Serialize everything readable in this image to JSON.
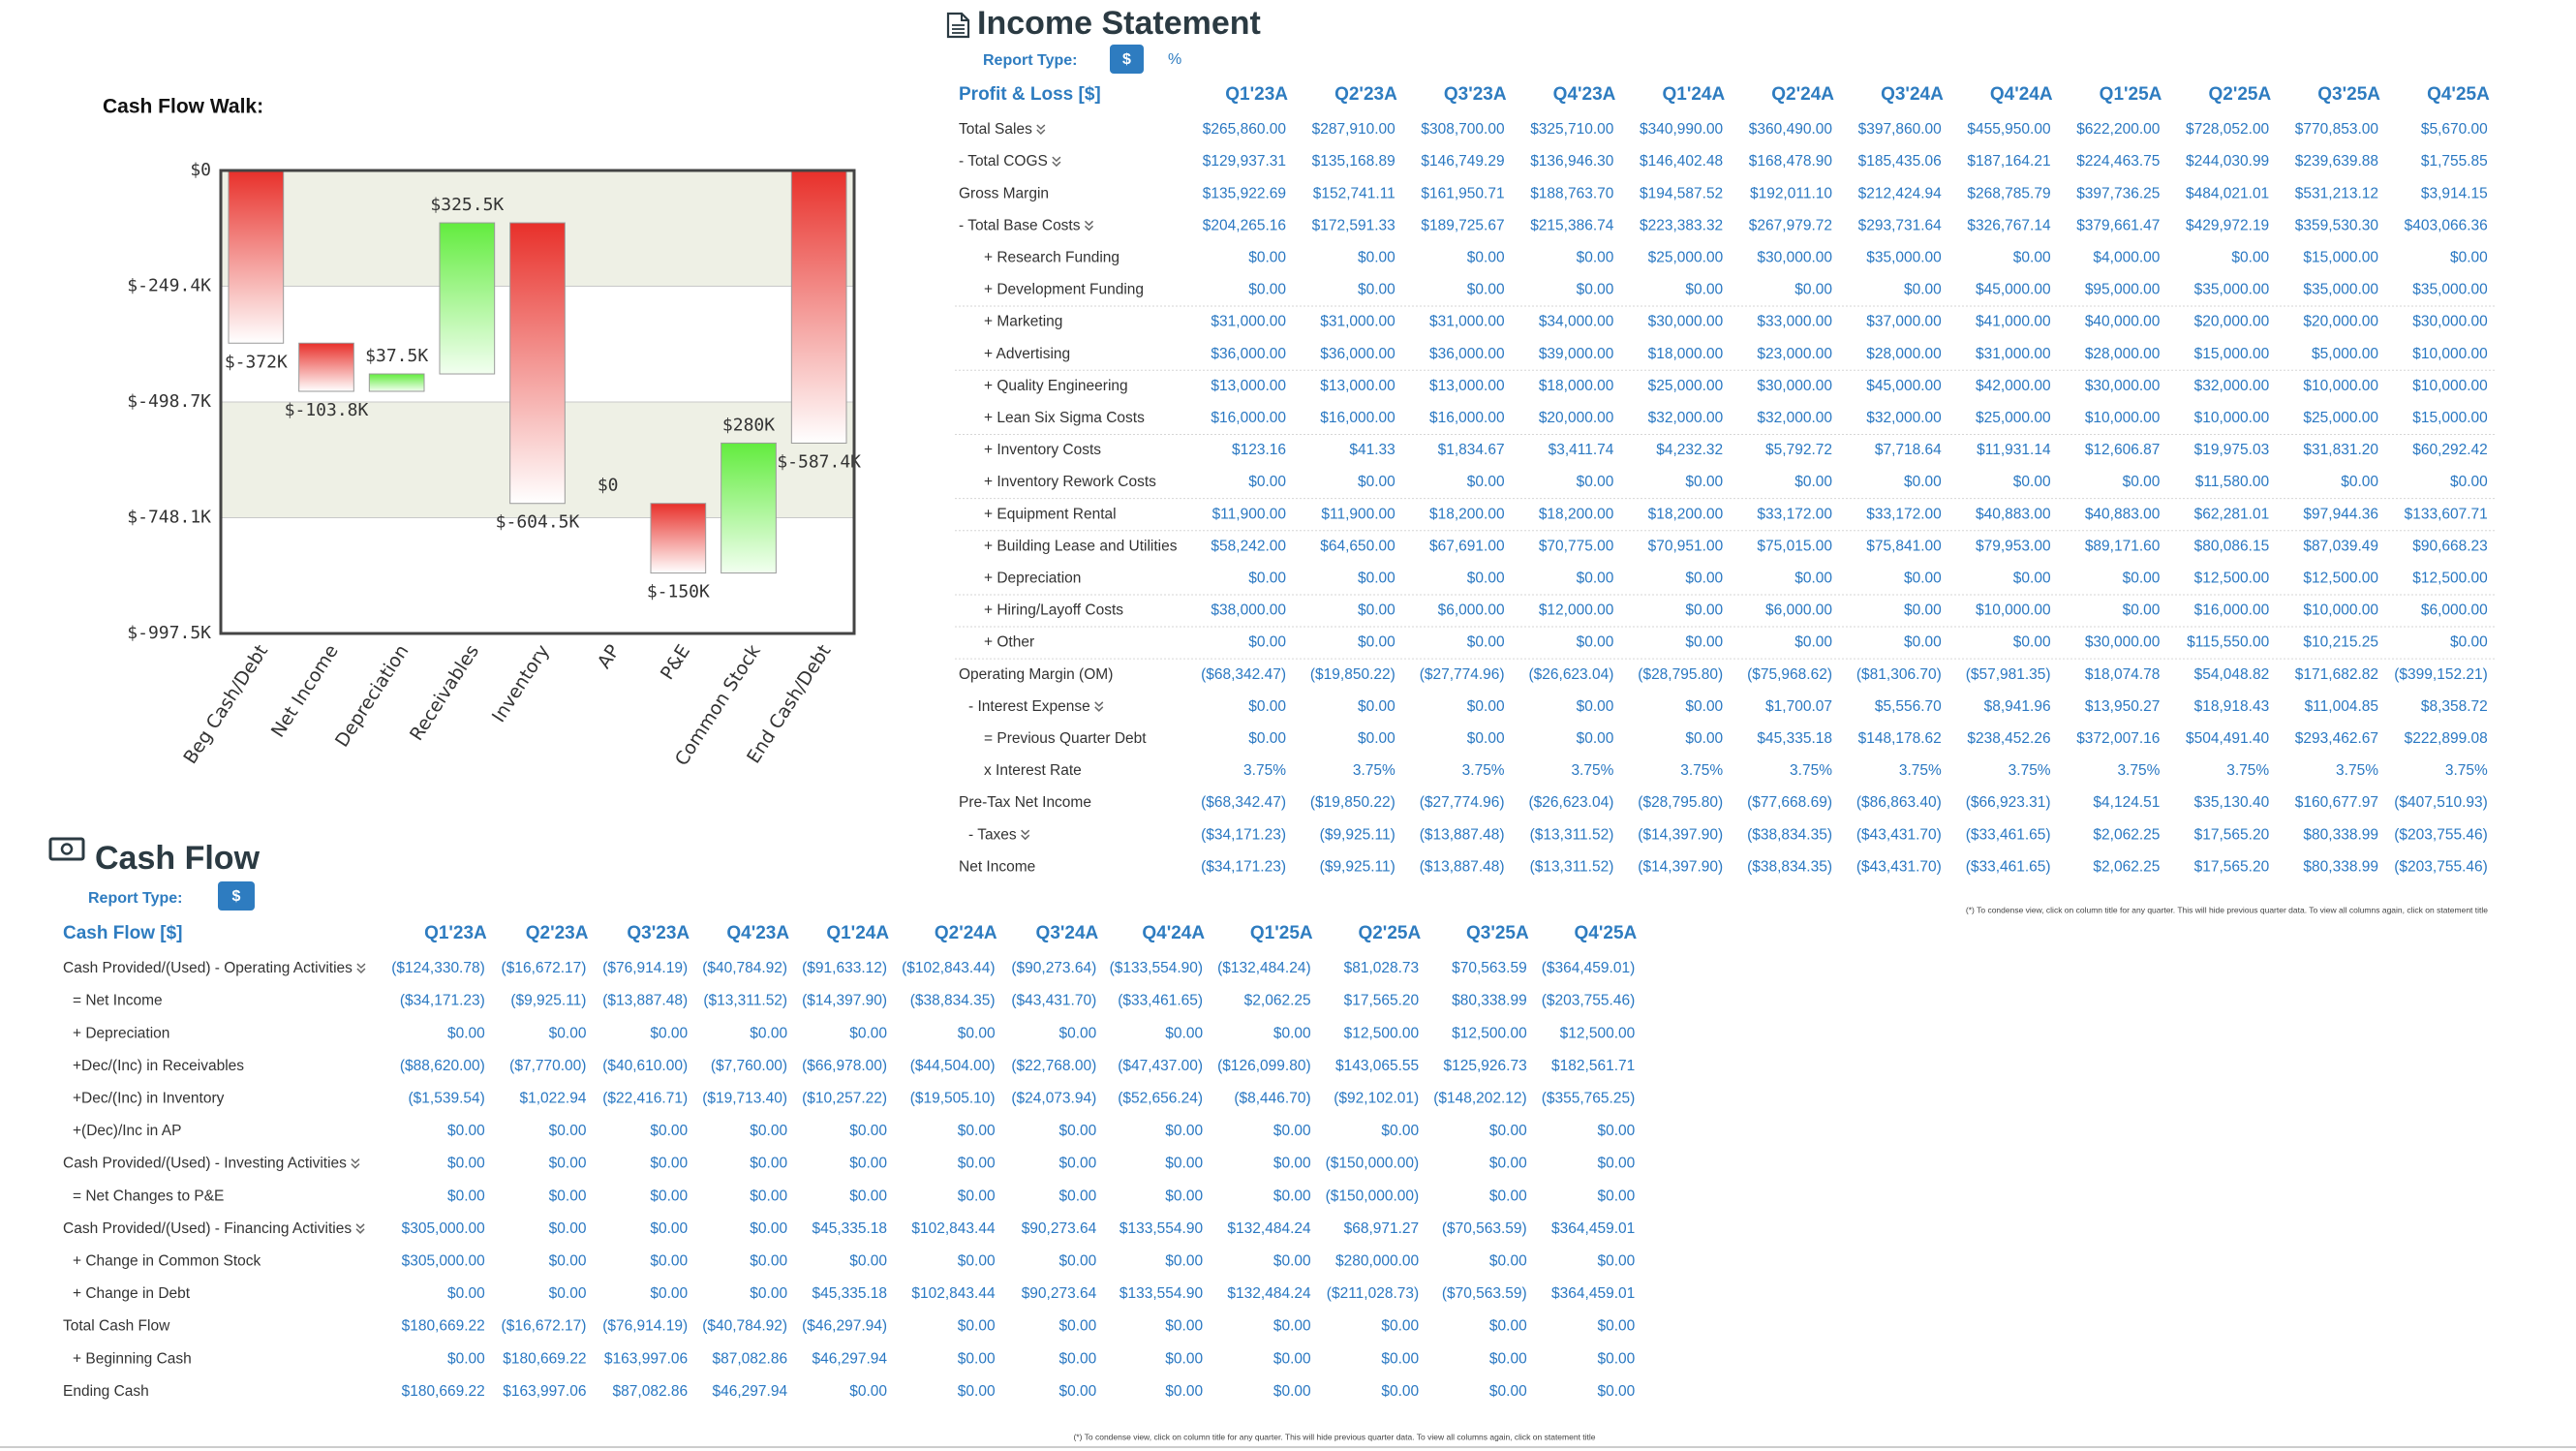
{
  "chart_data": {
    "type": "waterfall",
    "title": "Cash Flow Walk:",
    "categories": [
      "Beg Cash/Debt",
      "Net Income",
      "Depreciation",
      "Receivables",
      "Inventory",
      "AP",
      "P&E",
      "Common Stock",
      "End Cash/Debt"
    ],
    "values": [
      -372000,
      -103800,
      37500,
      325500,
      -604500,
      0,
      -150000,
      280000,
      -587400
    ],
    "value_labels": [
      "$-372K",
      "$-103.8K",
      "$37.5K",
      "$325.5K",
      "$-604.5K",
      "$0",
      "$-150K",
      "$280K",
      "$-587.4K"
    ],
    "ylim": [
      -997500,
      0
    ],
    "yticks": [
      {
        "value": 0,
        "label": "$0"
      },
      {
        "value": -249400,
        "label": "$-249.4K"
      },
      {
        "value": -498700,
        "label": "$-498.7K"
      },
      {
        "value": -748100,
        "label": "$-748.1K"
      },
      {
        "value": -997500,
        "label": "$-997.5K"
      }
    ],
    "colors": {
      "negative": "#e8302a",
      "positive": "#62ec3e"
    },
    "grid": true
  },
  "income_statement": {
    "title": "Income Statement",
    "report_type_label": "Report Type:",
    "report_type_options": [
      "$",
      "%"
    ],
    "header": "Profit & Loss [$]",
    "columns": [
      "Q1'23A",
      "Q2'23A",
      "Q3'23A",
      "Q4'23A",
      "Q1'24A",
      "Q2'24A",
      "Q3'24A",
      "Q4'24A",
      "Q1'25A",
      "Q2'25A",
      "Q3'25A",
      "Q4'25A"
    ],
    "rows": [
      {
        "label": "Total Sales",
        "values": [
          "$265,860.00",
          "$287,910.00",
          "$308,700.00",
          "$325,710.00",
          "$340,990.00",
          "$360,490.00",
          "$397,860.00",
          "$455,950.00",
          "$622,200.00",
          "$728,052.00",
          "$770,853.00",
          "$5,670.00"
        ]
      },
      {
        "label": "- Total COGS",
        "values": [
          "$129,937.31",
          "$135,168.89",
          "$146,749.29",
          "$136,946.30",
          "$146,402.48",
          "$168,478.90",
          "$185,435.06",
          "$187,164.21",
          "$224,463.75",
          "$244,030.99",
          "$239,639.88",
          "$1,755.85"
        ]
      },
      {
        "label": "Gross Margin",
        "values": [
          "$135,922.69",
          "$152,741.11",
          "$161,950.71",
          "$188,763.70",
          "$194,587.52",
          "$192,011.10",
          "$212,424.94",
          "$268,785.79",
          "$397,736.25",
          "$484,021.01",
          "$531,213.12",
          "$3,914.15"
        ]
      },
      {
        "label": "- Total Base Costs",
        "values": [
          "$204,265.16",
          "$172,591.33",
          "$189,725.67",
          "$215,386.74",
          "$223,383.32",
          "$267,979.72",
          "$293,731.64",
          "$326,767.14",
          "$379,661.47",
          "$429,972.19",
          "$359,530.30",
          "$403,066.36"
        ]
      },
      {
        "label": "+ Research Funding",
        "values": [
          "$0.00",
          "$0.00",
          "$0.00",
          "$0.00",
          "$25,000.00",
          "$30,000.00",
          "$35,000.00",
          "$0.00",
          "$4,000.00",
          "$0.00",
          "$15,000.00",
          "$0.00"
        ]
      },
      {
        "label": "+ Development Funding",
        "values": [
          "$0.00",
          "$0.00",
          "$0.00",
          "$0.00",
          "$0.00",
          "$0.00",
          "$0.00",
          "$45,000.00",
          "$95,000.00",
          "$35,000.00",
          "$35,000.00",
          "$35,000.00"
        ]
      },
      {
        "label": "+ Marketing",
        "values": [
          "$31,000.00",
          "$31,000.00",
          "$31,000.00",
          "$34,000.00",
          "$30,000.00",
          "$33,000.00",
          "$37,000.00",
          "$41,000.00",
          "$40,000.00",
          "$20,000.00",
          "$20,000.00",
          "$30,000.00"
        ]
      },
      {
        "label": "+ Advertising",
        "values": [
          "$36,000.00",
          "$36,000.00",
          "$36,000.00",
          "$39,000.00",
          "$18,000.00",
          "$23,000.00",
          "$28,000.00",
          "$31,000.00",
          "$28,000.00",
          "$15,000.00",
          "$5,000.00",
          "$10,000.00"
        ]
      },
      {
        "label": "+ Quality Engineering",
        "values": [
          "$13,000.00",
          "$13,000.00",
          "$13,000.00",
          "$18,000.00",
          "$25,000.00",
          "$30,000.00",
          "$45,000.00",
          "$42,000.00",
          "$30,000.00",
          "$32,000.00",
          "$10,000.00",
          "$10,000.00"
        ]
      },
      {
        "label": "+ Lean Six Sigma Costs",
        "values": [
          "$16,000.00",
          "$16,000.00",
          "$16,000.00",
          "$20,000.00",
          "$32,000.00",
          "$32,000.00",
          "$32,000.00",
          "$25,000.00",
          "$10,000.00",
          "$10,000.00",
          "$25,000.00",
          "$15,000.00"
        ]
      },
      {
        "label": "+ Inventory Costs",
        "values": [
          "$123.16",
          "$41.33",
          "$1,834.67",
          "$3,411.74",
          "$4,232.32",
          "$5,792.72",
          "$7,718.64",
          "$11,931.14",
          "$12,606.87",
          "$19,975.03",
          "$31,831.20",
          "$60,292.42"
        ]
      },
      {
        "label": "+ Inventory Rework Costs",
        "values": [
          "$0.00",
          "$0.00",
          "$0.00",
          "$0.00",
          "$0.00",
          "$0.00",
          "$0.00",
          "$0.00",
          "$0.00",
          "$11,580.00",
          "$0.00",
          "$0.00"
        ]
      },
      {
        "label": "+ Equipment Rental",
        "values": [
          "$11,900.00",
          "$11,900.00",
          "$18,200.00",
          "$18,200.00",
          "$18,200.00",
          "$33,172.00",
          "$33,172.00",
          "$40,883.00",
          "$40,883.00",
          "$62,281.01",
          "$97,944.36",
          "$133,607.71"
        ]
      },
      {
        "label": "+ Building Lease and Utilities",
        "values": [
          "$58,242.00",
          "$64,650.00",
          "$67,691.00",
          "$70,775.00",
          "$70,951.00",
          "$75,015.00",
          "$75,841.00",
          "$79,953.00",
          "$89,171.60",
          "$80,086.15",
          "$87,039.49",
          "$90,668.23"
        ]
      },
      {
        "label": "+ Depreciation",
        "values": [
          "$0.00",
          "$0.00",
          "$0.00",
          "$0.00",
          "$0.00",
          "$0.00",
          "$0.00",
          "$0.00",
          "$0.00",
          "$12,500.00",
          "$12,500.00",
          "$12,500.00"
        ]
      },
      {
        "label": "+ Hiring/Layoff Costs",
        "values": [
          "$38,000.00",
          "$0.00",
          "$6,000.00",
          "$12,000.00",
          "$0.00",
          "$6,000.00",
          "$0.00",
          "$10,000.00",
          "$0.00",
          "$16,000.00",
          "$10,000.00",
          "$6,000.00"
        ]
      },
      {
        "label": "+ Other",
        "values": [
          "$0.00",
          "$0.00",
          "$0.00",
          "$0.00",
          "$0.00",
          "$0.00",
          "$0.00",
          "$0.00",
          "$30,000.00",
          "$115,550.00",
          "$10,215.25",
          "$0.00"
        ]
      },
      {
        "label": "Operating Margin (OM)",
        "values": [
          "($68,342.47)",
          "($19,850.22)",
          "($27,774.96)",
          "($26,623.04)",
          "($28,795.80)",
          "($75,968.62)",
          "($81,306.70)",
          "($57,981.35)",
          "$18,074.78",
          "$54,048.82",
          "$171,682.82",
          "($399,152.21)"
        ]
      },
      {
        "label": "- Interest Expense",
        "values": [
          "$0.00",
          "$0.00",
          "$0.00",
          "$0.00",
          "$0.00",
          "$1,700.07",
          "$5,556.70",
          "$8,941.96",
          "$13,950.27",
          "$18,918.43",
          "$11,004.85",
          "$8,358.72"
        ]
      },
      {
        "label": "= Previous Quarter Debt",
        "values": [
          "$0.00",
          "$0.00",
          "$0.00",
          "$0.00",
          "$0.00",
          "$45,335.18",
          "$148,178.62",
          "$238,452.26",
          "$372,007.16",
          "$504,491.40",
          "$293,462.67",
          "$222,899.08"
        ]
      },
      {
        "label": "x Interest Rate",
        "values": [
          "3.75%",
          "3.75%",
          "3.75%",
          "3.75%",
          "3.75%",
          "3.75%",
          "3.75%",
          "3.75%",
          "3.75%",
          "3.75%",
          "3.75%",
          "3.75%"
        ]
      },
      {
        "label": "Pre-Tax Net Income",
        "values": [
          "($68,342.47)",
          "($19,850.22)",
          "($27,774.96)",
          "($26,623.04)",
          "($28,795.80)",
          "($77,668.69)",
          "($86,863.40)",
          "($66,923.31)",
          "$4,124.51",
          "$35,130.40",
          "$160,677.97",
          "($407,510.93)"
        ]
      },
      {
        "label": "- Taxes",
        "values": [
          "($34,171.23)",
          "($9,925.11)",
          "($13,887.48)",
          "($13,311.52)",
          "($14,397.90)",
          "($38,834.35)",
          "($43,431.70)",
          "($33,461.65)",
          "$2,062.25",
          "$17,565.20",
          "$80,338.99",
          "($203,755.46)"
        ]
      },
      {
        "label": "Net Income",
        "values": [
          "($34,171.23)",
          "($9,925.11)",
          "($13,887.48)",
          "($13,311.52)",
          "($14,397.90)",
          "($38,834.35)",
          "($43,431.70)",
          "($33,461.65)",
          "$2,062.25",
          "$17,565.20",
          "$80,338.99",
          "($203,755.46)"
        ]
      }
    ],
    "footnote": "(*) To condense view, click on column title for any quarter. This will hide previous quarter data. To view all columns again, click on statement title"
  },
  "cash_flow": {
    "title": "Cash Flow",
    "report_type_label": "Report Type:",
    "report_type_options": [
      "$"
    ],
    "header": "Cash Flow [$]",
    "columns": [
      "Q1'23A",
      "Q2'23A",
      "Q3'23A",
      "Q4'23A",
      "Q1'24A",
      "Q2'24A",
      "Q3'24A",
      "Q4'24A",
      "Q1'25A",
      "Q2'25A",
      "Q3'25A",
      "Q4'25A"
    ],
    "rows": [
      {
        "label": "Cash Provided/(Used) - Operating Activities",
        "values": [
          "($124,330.78)",
          "($16,672.17)",
          "($76,914.19)",
          "($40,784.92)",
          "($91,633.12)",
          "($102,843.44)",
          "($90,273.64)",
          "($133,554.90)",
          "($132,484.24)",
          "$81,028.73",
          "$70,563.59",
          "($364,459.01)"
        ]
      },
      {
        "label": "= Net Income",
        "values": [
          "($34,171.23)",
          "($9,925.11)",
          "($13,887.48)",
          "($13,311.52)",
          "($14,397.90)",
          "($38,834.35)",
          "($43,431.70)",
          "($33,461.65)",
          "$2,062.25",
          "$17,565.20",
          "$80,338.99",
          "($203,755.46)"
        ]
      },
      {
        "label": "+ Depreciation",
        "values": [
          "$0.00",
          "$0.00",
          "$0.00",
          "$0.00",
          "$0.00",
          "$0.00",
          "$0.00",
          "$0.00",
          "$0.00",
          "$12,500.00",
          "$12,500.00",
          "$12,500.00"
        ]
      },
      {
        "label": "+Dec/(Inc) in Receivables",
        "values": [
          "($88,620.00)",
          "($7,770.00)",
          "($40,610.00)",
          "($7,760.00)",
          "($66,978.00)",
          "($44,504.00)",
          "($22,768.00)",
          "($47,437.00)",
          "($126,099.80)",
          "$143,065.55",
          "$125,926.73",
          "$182,561.71"
        ]
      },
      {
        "label": "+Dec/(Inc) in Inventory",
        "values": [
          "($1,539.54)",
          "$1,022.94",
          "($22,416.71)",
          "($19,713.40)",
          "($10,257.22)",
          "($19,505.10)",
          "($24,073.94)",
          "($52,656.24)",
          "($8,446.70)",
          "($92,102.01)",
          "($148,202.12)",
          "($355,765.25)"
        ]
      },
      {
        "label": "+(Dec)/Inc in AP",
        "values": [
          "$0.00",
          "$0.00",
          "$0.00",
          "$0.00",
          "$0.00",
          "$0.00",
          "$0.00",
          "$0.00",
          "$0.00",
          "$0.00",
          "$0.00",
          "$0.00"
        ]
      },
      {
        "label": "Cash Provided/(Used) - Investing Activities",
        "values": [
          "$0.00",
          "$0.00",
          "$0.00",
          "$0.00",
          "$0.00",
          "$0.00",
          "$0.00",
          "$0.00",
          "$0.00",
          "($150,000.00)",
          "$0.00",
          "$0.00"
        ]
      },
      {
        "label": "= Net Changes to P&E",
        "values": [
          "$0.00",
          "$0.00",
          "$0.00",
          "$0.00",
          "$0.00",
          "$0.00",
          "$0.00",
          "$0.00",
          "$0.00",
          "($150,000.00)",
          "$0.00",
          "$0.00"
        ]
      },
      {
        "label": "Cash Provided/(Used) - Financing Activities",
        "values": [
          "$305,000.00",
          "$0.00",
          "$0.00",
          "$0.00",
          "$45,335.18",
          "$102,843.44",
          "$90,273.64",
          "$133,554.90",
          "$132,484.24",
          "$68,971.27",
          "($70,563.59)",
          "$364,459.01"
        ]
      },
      {
        "label": "+ Change in Common Stock",
        "values": [
          "$305,000.00",
          "$0.00",
          "$0.00",
          "$0.00",
          "$0.00",
          "$0.00",
          "$0.00",
          "$0.00",
          "$0.00",
          "$280,000.00",
          "$0.00",
          "$0.00"
        ]
      },
      {
        "label": "+ Change in Debt",
        "values": [
          "$0.00",
          "$0.00",
          "$0.00",
          "$0.00",
          "$45,335.18",
          "$102,843.44",
          "$90,273.64",
          "$133,554.90",
          "$132,484.24",
          "($211,028.73)",
          "($70,563.59)",
          "$364,459.01"
        ]
      },
      {
        "label": "Total Cash Flow",
        "values": [
          "$180,669.22",
          "($16,672.17)",
          "($76,914.19)",
          "($40,784.92)",
          "($46,297.94)",
          "$0.00",
          "$0.00",
          "$0.00",
          "$0.00",
          "$0.00",
          "$0.00",
          "$0.00"
        ]
      },
      {
        "label": "+ Beginning Cash",
        "values": [
          "$0.00",
          "$180,669.22",
          "$163,997.06",
          "$87,082.86",
          "$46,297.94",
          "$0.00",
          "$0.00",
          "$0.00",
          "$0.00",
          "$0.00",
          "$0.00",
          "$0.00"
        ]
      },
      {
        "label": "Ending Cash",
        "values": [
          "$180,669.22",
          "$163,997.06",
          "$87,082.86",
          "$46,297.94",
          "$0.00",
          "$0.00",
          "$0.00",
          "$0.00",
          "$0.00",
          "$0.00",
          "$0.00",
          "$0.00"
        ]
      }
    ],
    "footnote": "(*) To condense view, click on column title for any quarter. This will hide previous quarter data. To view all columns again, click on statement title"
  }
}
